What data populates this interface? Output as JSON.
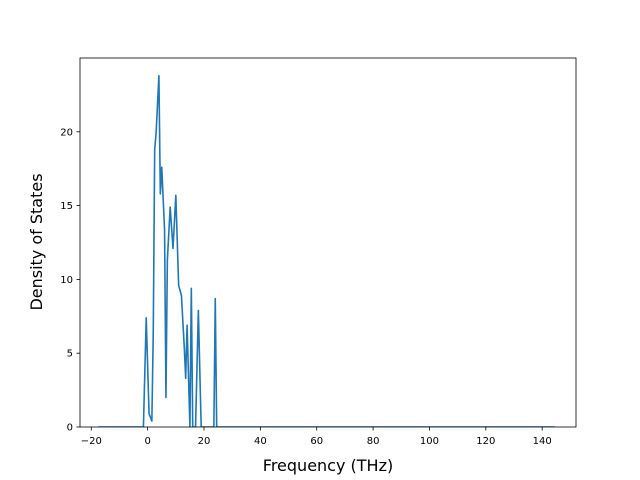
{
  "chart_data": {
    "type": "line",
    "title": "",
    "xlabel": "Frequency (THz)",
    "ylabel": "Density of States",
    "xlim": [
      -24,
      152
    ],
    "ylim": [
      0,
      25
    ],
    "xticks": [
      -20,
      0,
      20,
      40,
      60,
      80,
      100,
      120,
      140
    ],
    "yticks": [
      0,
      5,
      10,
      15,
      20
    ],
    "grid": false,
    "legend": "none",
    "line_color": "#1f77b4",
    "series": [
      {
        "x": [
          -17.5,
          -2.5,
          -1.5,
          -0.5,
          0.5,
          1.5,
          2.0,
          2.5,
          3.0,
          4.0,
          4.5,
          5.0,
          6.0,
          6.5,
          7.0,
          8.0,
          9.0,
          10.0,
          11.0,
          12.0,
          13.0,
          13.5,
          14.0,
          15.0,
          15.5,
          16.0,
          17.0,
          18.0,
          19.0,
          20.0,
          23.5,
          24.0,
          24.5,
          25.0,
          144.5
        ],
        "y": [
          0,
          0,
          0,
          7.4,
          0.9,
          0.4,
          6.5,
          18.8,
          19.9,
          23.8,
          15.8,
          17.6,
          13.4,
          2.0,
          11.3,
          14.9,
          12.1,
          15.7,
          9.6,
          8.9,
          5.4,
          3.3,
          6.9,
          0,
          9.4,
          0,
          0,
          7.9,
          0,
          0,
          0,
          8.7,
          0,
          0,
          0
        ]
      }
    ]
  }
}
